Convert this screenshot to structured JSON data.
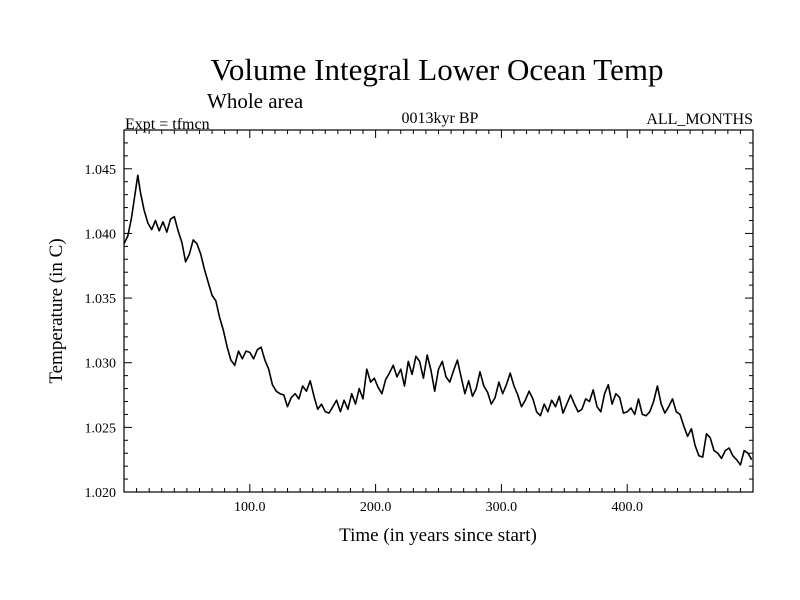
{
  "chart_data": {
    "type": "line",
    "title": "Volume Integral Lower Ocean Temp",
    "subtitle": "Whole area",
    "expt_label": "Expt = tfmcn",
    "period_label": "0013kyr BP",
    "months_label": "ALL_MONTHS",
    "xlabel": "Time (in years since start)",
    "ylabel": "Temperature (in C)",
    "xlim": [
      0,
      500
    ],
    "ylim": [
      1.02,
      1.048
    ],
    "xticks": [
      100,
      200,
      300,
      400
    ],
    "xtick_labels": [
      "100.0",
      "200.0",
      "300.0",
      "400.0"
    ],
    "yticks": [
      1.02,
      1.025,
      1.03,
      1.035,
      1.04,
      1.045
    ],
    "ytick_labels": [
      "1.020",
      "1.025",
      "1.030",
      "1.035",
      "1.040",
      "1.045"
    ],
    "grid": false,
    "series": [
      {
        "color": "#000000",
        "x": [
          0,
          3,
          6,
          9,
          11,
          13,
          16,
          19,
          22,
          25,
          28,
          31,
          34,
          37,
          40,
          43,
          46,
          49,
          52,
          55,
          58,
          61,
          64,
          67,
          70,
          73,
          76,
          79,
          82,
          85,
          88,
          91,
          94,
          97,
          100,
          103,
          106,
          109,
          112,
          115,
          118,
          121,
          124,
          127,
          130,
          133,
          136,
          139,
          142,
          145,
          148,
          151,
          154,
          157,
          160,
          163,
          166,
          169,
          172,
          175,
          178,
          181,
          184,
          187,
          190,
          193,
          196,
          199,
          202,
          205,
          208,
          211,
          214,
          217,
          220,
          223,
          226,
          229,
          232,
          235,
          238,
          241,
          244,
          247,
          250,
          253,
          256,
          259,
          262,
          265,
          268,
          271,
          274,
          277,
          280,
          283,
          286,
          289,
          292,
          295,
          298,
          301,
          304,
          307,
          310,
          313,
          316,
          319,
          322,
          325,
          328,
          331,
          334,
          337,
          340,
          343,
          346,
          349,
          352,
          355,
          358,
          361,
          364,
          367,
          370,
          373,
          376,
          379,
          382,
          385,
          388,
          391,
          394,
          397,
          400,
          403,
          406,
          409,
          412,
          415,
          418,
          421,
          424,
          427,
          430,
          433,
          436,
          439,
          442,
          445,
          448,
          451,
          454,
          457,
          460,
          463,
          466,
          469,
          472,
          475,
          478,
          481,
          484,
          487,
          490,
          493,
          496,
          499
        ],
        "y": [
          1.0392,
          1.0398,
          1.0412,
          1.0432,
          1.0445,
          1.0432,
          1.0418,
          1.0408,
          1.0403,
          1.041,
          1.0402,
          1.0409,
          1.0401,
          1.0411,
          1.0413,
          1.0402,
          1.0393,
          1.0378,
          1.0384,
          1.0395,
          1.0392,
          1.0384,
          1.0372,
          1.0362,
          1.0352,
          1.0348,
          1.0335,
          1.0325,
          1.0312,
          1.0302,
          1.0298,
          1.0309,
          1.0303,
          1.0309,
          1.0308,
          1.0303,
          1.031,
          1.0312,
          1.0302,
          1.0295,
          1.0283,
          1.0278,
          1.0276,
          1.0275,
          1.0266,
          1.0273,
          1.0276,
          1.0272,
          1.0282,
          1.0278,
          1.0286,
          1.0274,
          1.0264,
          1.0268,
          1.0262,
          1.0261,
          1.0266,
          1.0271,
          1.0262,
          1.0271,
          1.0264,
          1.0276,
          1.0268,
          1.028,
          1.0272,
          1.0295,
          1.0285,
          1.0288,
          1.0281,
          1.0276,
          1.0287,
          1.0292,
          1.0298,
          1.0289,
          1.0295,
          1.0282,
          1.0301,
          1.0291,
          1.0305,
          1.0301,
          1.0288,
          1.0306,
          1.0294,
          1.0278,
          1.0295,
          1.0301,
          1.0289,
          1.0285,
          1.0294,
          1.0302,
          1.0289,
          1.0276,
          1.0286,
          1.0274,
          1.028,
          1.0293,
          1.0282,
          1.0277,
          1.0268,
          1.0273,
          1.0285,
          1.0276,
          1.0283,
          1.0292,
          1.0282,
          1.0275,
          1.0266,
          1.0271,
          1.0278,
          1.0272,
          1.0262,
          1.0259,
          1.0268,
          1.0262,
          1.0271,
          1.0266,
          1.0274,
          1.0261,
          1.0268,
          1.0275,
          1.0268,
          1.0262,
          1.0264,
          1.0272,
          1.027,
          1.0279,
          1.0266,
          1.0262,
          1.0276,
          1.0283,
          1.0268,
          1.0276,
          1.0273,
          1.0261,
          1.0262,
          1.0265,
          1.026,
          1.0272,
          1.026,
          1.0259,
          1.0262,
          1.027,
          1.0282,
          1.0268,
          1.0261,
          1.0266,
          1.0272,
          1.0262,
          1.026,
          1.0251,
          1.0243,
          1.0249,
          1.0236,
          1.0228,
          1.0227,
          1.0245,
          1.0242,
          1.0232,
          1.023,
          1.0226,
          1.0232,
          1.0234,
          1.0228,
          1.0225,
          1.0221,
          1.0232,
          1.023,
          1.0225
        ]
      }
    ]
  }
}
